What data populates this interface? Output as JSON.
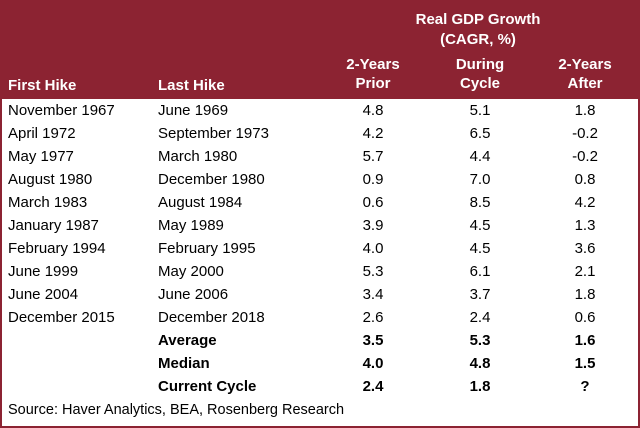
{
  "accent_color": "#8C2332",
  "header": {
    "title_line1": "Real GDP Growth",
    "title_line2": "(CAGR, %)"
  },
  "chart_data": {
    "type": "table",
    "title": "Real GDP Growth (CAGR, %)",
    "headers": [
      {
        "line1": "First Hike",
        "line2": ""
      },
      {
        "line1": "Last Hike",
        "line2": ""
      },
      {
        "line1": "2-Years",
        "line2": "Prior"
      },
      {
        "line1": "During",
        "line2": "Cycle"
      },
      {
        "line1": "2-Years",
        "line2": "After"
      }
    ],
    "rows": [
      [
        "November 1967",
        "June 1969",
        "4.8",
        "5.1",
        "1.8"
      ],
      [
        "April 1972",
        "September 1973",
        "4.2",
        "6.5",
        "-0.2"
      ],
      [
        "May 1977",
        "March 1980",
        "5.7",
        "4.4",
        "-0.2"
      ],
      [
        "August 1980",
        "December 1980",
        "0.9",
        "7.0",
        "0.8"
      ],
      [
        "March 1983",
        "August 1984",
        "0.6",
        "8.5",
        "4.2"
      ],
      [
        "January 1987",
        "May 1989",
        "3.9",
        "4.5",
        "1.3"
      ],
      [
        "February 1994",
        "February 1995",
        "4.0",
        "4.5",
        "3.6"
      ],
      [
        "June 1999",
        "May 2000",
        "5.3",
        "6.1",
        "2.1"
      ],
      [
        "June 2004",
        "June 2006",
        "3.4",
        "3.7",
        "1.8"
      ],
      [
        "December 2015",
        "December 2018",
        "2.6",
        "2.4",
        "0.6"
      ]
    ],
    "summary_rows": [
      {
        "label": "Average",
        "values": [
          "3.5",
          "5.3",
          "1.6"
        ]
      },
      {
        "label": "Median",
        "values": [
          "4.0",
          "4.8",
          "1.5"
        ]
      },
      {
        "label": "Current Cycle",
        "values": [
          "2.4",
          "1.8",
          "?"
        ]
      }
    ]
  },
  "source": "Source: Haver Analytics, BEA, Rosenberg Research"
}
